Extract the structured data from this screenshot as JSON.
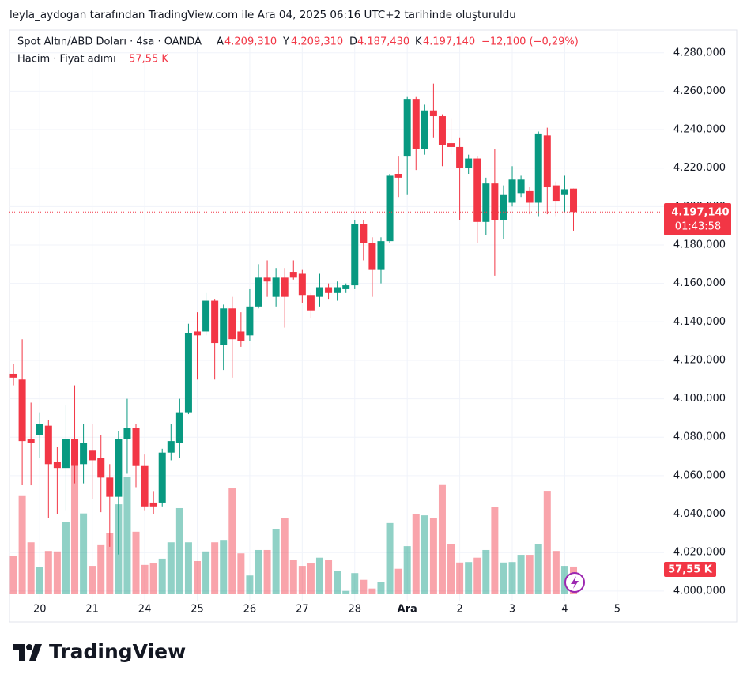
{
  "chart_data": {
    "type": "candlestick",
    "attribution": "leyla_aydogan tarafından TradingView.com ile Ara 04, 2025 06:16 UTC+2 tarihinde oluşturuldu",
    "title": "Spot Altın/ABD Doları · 4sa · OANDA",
    "legend_items": [
      {
        "key": "A",
        "value": "4.209,310"
      },
      {
        "key": "Y",
        "value": "4.209,310"
      },
      {
        "key": "D",
        "value": "4.187,430"
      },
      {
        "key": "K",
        "value": "4.197,140"
      }
    ],
    "change": "−12,100 (−0,29%)",
    "price_label": "4.197,140",
    "countdown": "01:43:58",
    "brand": "TradingView",
    "up_color": "#089981",
    "down_color": "#f23645",
    "categories": [
      null,
      null,
      null,
      "20",
      null,
      null,
      null,
      null,
      null,
      "21",
      null,
      null,
      null,
      null,
      null,
      "24",
      null,
      null,
      null,
      null,
      null,
      "25",
      null,
      null,
      null,
      null,
      null,
      "26",
      null,
      null,
      null,
      null,
      null,
      "27",
      null,
      null,
      null,
      null,
      null,
      "28",
      null,
      null,
      null,
      null,
      null,
      "Ara",
      null,
      null,
      null,
      null,
      null,
      "2",
      null,
      null,
      null,
      null,
      null,
      "3",
      null,
      null,
      null,
      null,
      null,
      "4",
      null,
      null,
      null,
      null,
      null,
      "5"
    ],
    "open": [
      4113,
      4110,
      4079,
      4081,
      4086,
      4067,
      4064,
      4079,
      4066,
      4073,
      4069,
      4059,
      4049,
      4079,
      4085,
      4065,
      4046,
      4046,
      4072,
      4077,
      4093,
      4135,
      4135,
      4151,
      4128,
      4147,
      4135,
      4133,
      4148,
      4163,
      4153,
      4163,
      4166,
      4165,
      4154,
      4153,
      4158,
      4155,
      4157,
      4159,
      4191,
      4181,
      4167,
      4182,
      4217,
      4226,
      4256,
      4230,
      4250,
      4247,
      4233,
      4231,
      4220,
      4225,
      4192,
      4212,
      4193,
      4202,
      4207,
      4208,
      4202,
      4237,
      4211,
      4206,
      4209.31,
      null,
      null,
      null,
      null,
      null
    ],
    "high": [
      4118,
      4131,
      4098,
      4093,
      4089,
      4075,
      4097,
      4107,
      4087,
      4087,
      4081,
      4066,
      4083,
      4100,
      4087,
      4071,
      4052,
      4074,
      4087,
      4100,
      4139,
      4145,
      4155,
      4152,
      4149,
      4153,
      4145,
      4157,
      4170,
      4172,
      4168,
      4168,
      4172,
      4167,
      4155,
      4165,
      4160,
      4161,
      4160,
      4193,
      4193,
      4184,
      4184,
      4217,
      4226,
      4257,
      4257,
      4253,
      4264,
      4248,
      4246,
      4236,
      4227,
      4226,
      4215,
      4230,
      4211,
      4221,
      4216,
      4210,
      4239,
      4241,
      4213,
      4216,
      4209.31,
      null,
      null,
      null,
      null,
      null
    ],
    "low": [
      4107,
      4055,
      4055,
      4069,
      4038,
      4040,
      4042,
      4056,
      4056,
      4048,
      4041,
      4023,
      4019,
      4061,
      4054,
      4042,
      4040,
      4044,
      4068,
      4069,
      4092,
      4110,
      4133,
      4110,
      4115,
      4111,
      4127,
      4130,
      4147,
      4153,
      4148,
      4137,
      4162,
      4150,
      4142,
      4148,
      4152,
      4151,
      4155,
      4157,
      4172,
      4153,
      4160,
      4181,
      4205,
      4206,
      4219,
      4227,
      4236,
      4221,
      4227,
      4193,
      4217,
      4181,
      4185,
      4164,
      4183,
      4200,
      4205,
      4196,
      4195,
      4196,
      4195,
      4197,
      4187.43,
      null,
      null,
      null,
      null,
      null
    ],
    "close": [
      4111,
      4078,
      4077,
      4087,
      4066,
      4064,
      4079,
      4065,
      4077,
      4068,
      4059,
      4049,
      4079,
      4085,
      4065,
      4044,
      4044,
      4072,
      4078,
      4093,
      4134,
      4133,
      4151,
      4129,
      4147,
      4131,
      4130,
      4148,
      4163,
      4161,
      4163,
      4153,
      4163,
      4154,
      4146,
      4158,
      4155,
      4158,
      4159,
      4191,
      4181,
      4167,
      4182,
      4216,
      4215,
      4256,
      4230,
      4250,
      4247,
      4232,
      4231,
      4220,
      4225,
      4192,
      4212,
      4193,
      4206,
      4214,
      4214,
      4202,
      4238,
      4210,
      4203,
      4209,
      4197.14,
      null,
      null,
      null,
      null,
      null
    ],
    "volume": {
      "title": "Hacim · Fiyat adımı",
      "last_label": "57,55 K",
      "values": [
        80,
        204,
        108,
        56,
        90,
        89,
        151,
        266,
        168,
        59,
        102,
        127,
        187,
        243,
        130,
        61,
        64,
        74,
        108,
        179,
        108,
        69,
        89,
        108,
        113,
        220,
        85,
        39,
        92,
        92,
        135,
        159,
        72,
        59,
        64,
        76,
        72,
        48,
        7,
        44,
        30,
        12,
        25,
        148,
        53,
        100,
        166,
        164,
        159,
        227,
        104,
        66,
        67,
        76,
        92,
        182,
        66,
        67,
        82,
        82,
        105,
        215,
        90,
        59,
        57.55,
        null,
        null,
        null,
        null,
        null
      ]
    },
    "ylim": [
      3995,
      4291
    ],
    "yticks": [
      {
        "value": 4000,
        "label": "4.000,000"
      },
      {
        "value": 4020,
        "label": "4.020,000"
      },
      {
        "value": 4040,
        "label": "4.040,000"
      },
      {
        "value": 4060,
        "label": "4.060,000"
      },
      {
        "value": 4080,
        "label": "4.080,000"
      },
      {
        "value": 4100,
        "label": "4.100,000"
      },
      {
        "value": 4120,
        "label": "4.120,000"
      },
      {
        "value": 4140,
        "label": "4.140,000"
      },
      {
        "value": 4160,
        "label": "4.160,000"
      },
      {
        "value": 4180,
        "label": "4.180,000"
      },
      {
        "value": 4200,
        "label": "4.200,000"
      },
      {
        "value": 4220,
        "label": "4.220,000"
      },
      {
        "value": 4240,
        "label": "4.240,000"
      },
      {
        "value": 4260,
        "label": "4.260,000"
      },
      {
        "value": 4280,
        "label": "4.280,000"
      }
    ],
    "grid": true
  }
}
